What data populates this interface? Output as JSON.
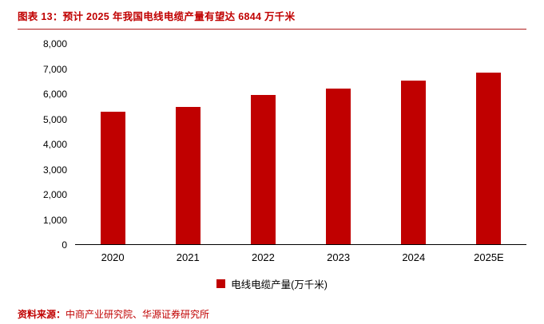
{
  "header": {
    "title": "图表 13：预计 2025 年我国电线电缆产量有望达 6844 万千米"
  },
  "chart_data": {
    "type": "bar",
    "title": "预计 2025 年我国电线电缆产量有望达 6844 万千米",
    "categories": [
      "2020",
      "2021",
      "2022",
      "2023",
      "2024",
      "2025E"
    ],
    "values": [
      5280,
      5480,
      5950,
      6230,
      6550,
      6844
    ],
    "series_name": "电线电缆产量(万千米)",
    "xlabel": "",
    "ylabel": "",
    "ylim": [
      0,
      8000
    ],
    "ytick_interval": 1000,
    "yticks": [
      "0",
      "1,000",
      "2,000",
      "3,000",
      "4,000",
      "5,000",
      "6,000",
      "7,000",
      "8,000"
    ],
    "grid": false,
    "legend_position": "bottom-center",
    "legend_label": "电线电缆产量(万千米)",
    "bar_color": "#c00000"
  },
  "footer": {
    "source_label": "资料来源：",
    "source_text": "中商产业研究院、华源证券研究所"
  }
}
